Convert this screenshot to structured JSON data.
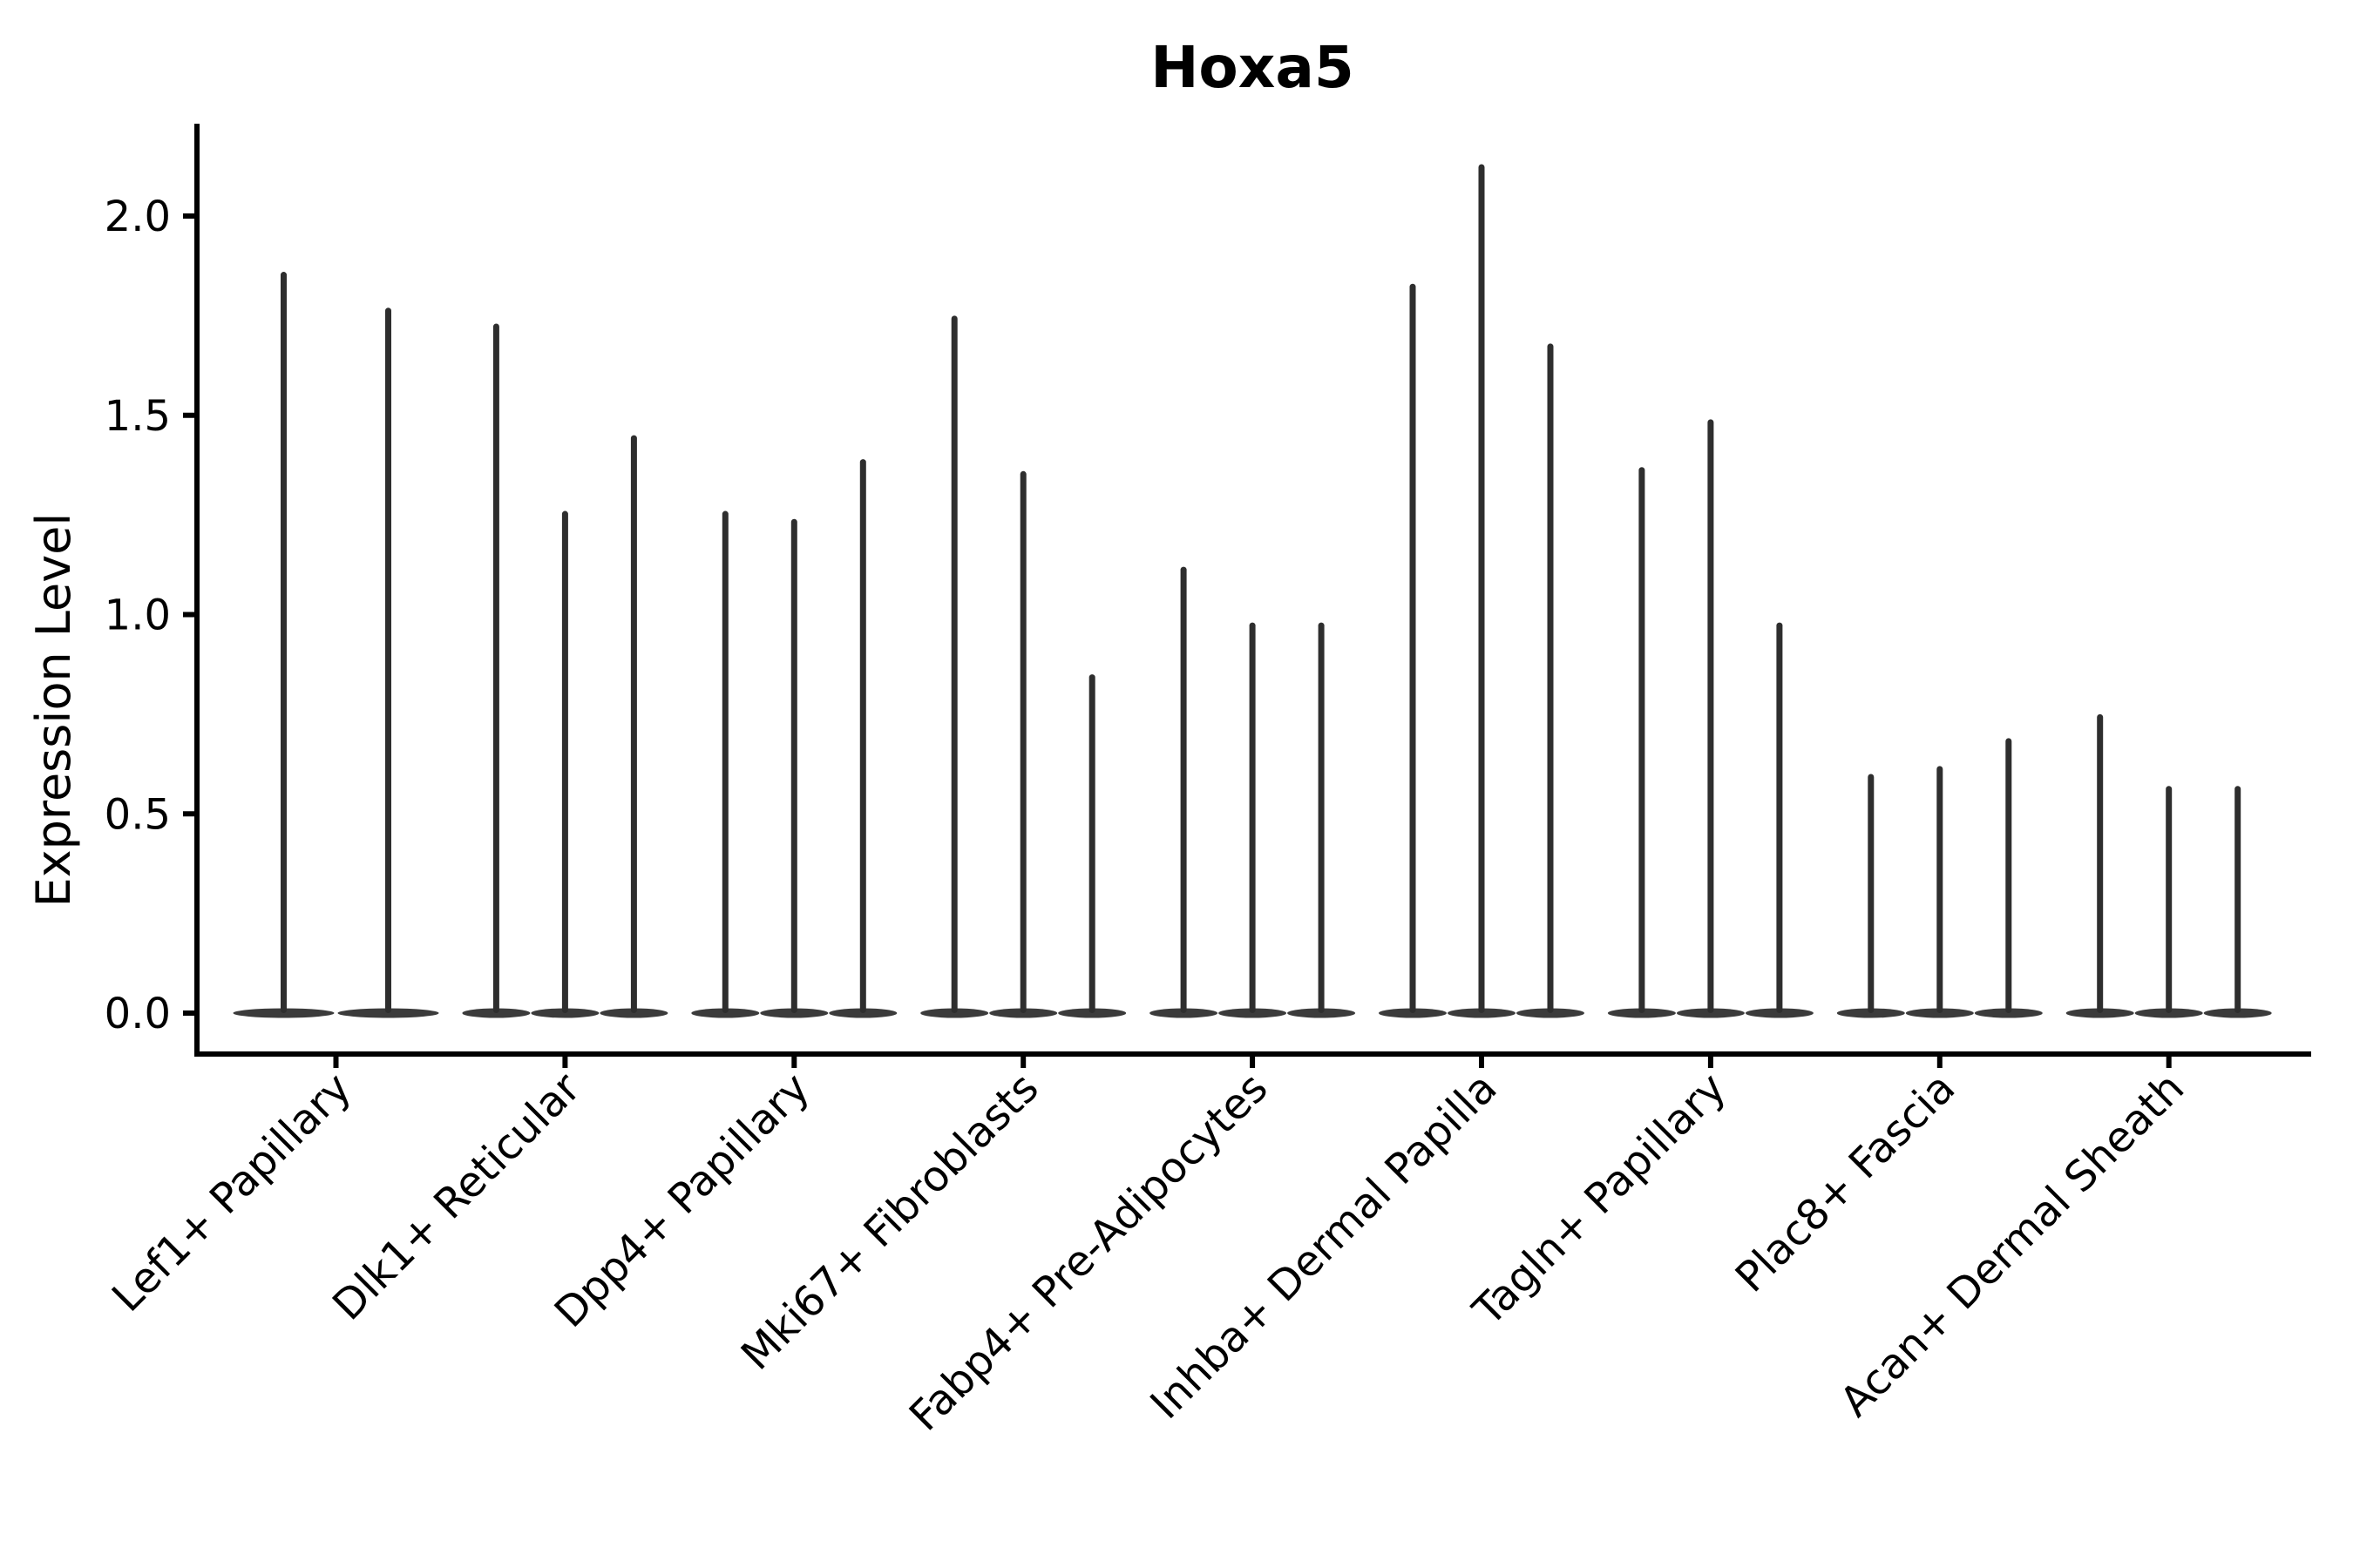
{
  "figure": {
    "background_color": "#ffffff",
    "axis_color": "#000000",
    "violin_spike_color": "#2e2e2e",
    "violin_base_color": "#3b3b3b"
  },
  "chart_data": {
    "type": "violin",
    "title": "Hoxa5",
    "xlabel": "",
    "ylabel": "Expression Level",
    "ylim": [
      -0.1,
      2.23
    ],
    "yticks": [
      0.0,
      0.5,
      1.0,
      1.5,
      2.0
    ],
    "ytick_labels": [
      "0.0",
      "0.5",
      "1.0",
      "1.5",
      "2.0"
    ],
    "grid": false,
    "legend_position": "none",
    "orientation": "vertical",
    "description": "Violin plot of Hoxa5 expression level per fibroblast cluster; each cluster contains multiple very thin violins (near-zero density bodies at 0 with a narrow spike up to the maximum expression value).",
    "categories": [
      "Lef1+ Papillary",
      "Dlk1+ Reticular",
      "Dpp4+ Papillary",
      "Mki67+ Fibroblasts",
      "Fabp4+ Pre-Adipocytes",
      "Inhba+ Dermal Papilla",
      "Tagln+ Papillary",
      "Plac8+ Fascia",
      "Acan+ Dermal Sheath"
    ],
    "violins": [
      {
        "category": "Lef1+ Papillary",
        "max_values": [
          1.86,
          1.77
        ]
      },
      {
        "category": "Dlk1+ Reticular",
        "max_values": [
          1.73,
          1.26,
          1.45
        ]
      },
      {
        "category": "Dpp4+ Papillary",
        "max_values": [
          1.26,
          1.24,
          1.39
        ]
      },
      {
        "category": "Mki67+ Fibroblasts",
        "max_values": [
          1.75,
          1.36,
          0.85
        ]
      },
      {
        "category": "Fabp4+ Pre-Adipocytes",
        "max_values": [
          1.12,
          0.98,
          0.98
        ]
      },
      {
        "category": "Inhba+ Dermal Papilla",
        "max_values": [
          1.83,
          2.13,
          1.68
        ]
      },
      {
        "category": "Tagln+ Papillary",
        "max_values": [
          1.37,
          1.49,
          0.98
        ]
      },
      {
        "category": "Plac8+ Fascia",
        "max_values": [
          0.6,
          0.62,
          0.69
        ]
      },
      {
        "category": "Acan+ Dermal Sheath",
        "max_values": [
          0.75,
          0.57,
          0.57
        ]
      }
    ]
  }
}
